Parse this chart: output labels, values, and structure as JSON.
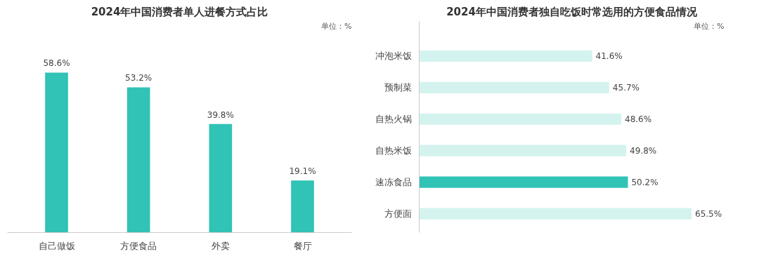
{
  "chart_data": [
    {
      "type": "bar",
      "title": "2024年中国消费者单人进餐方式占比",
      "categories": [
        "自己做饭",
        "方便食品",
        "外卖",
        "餐厅"
      ],
      "values": [
        58.6,
        53.2,
        39.8,
        19.1
      ],
      "color": "#31c3b5",
      "value_labels": [
        "58.6%",
        "53.2%",
        "39.8%",
        "19.1%"
      ],
      "annotations": [
        "单位：%"
      ],
      "grid": false
    },
    {
      "type": "bar",
      "orientation": "horizontal",
      "title": "2024年中国消费者独自吃饭时常选用的方便食品情况",
      "categories": [
        "冲泡米饭",
        "预制菜",
        "自热火锅",
        "自热米饭",
        "速冻食品",
        "方便面"
      ],
      "values": [
        41.6,
        45.7,
        48.6,
        49.8,
        50.2,
        65.5
      ],
      "colors": [
        "#d4f3ef",
        "#d4f3ef",
        "#d4f3ef",
        "#d4f3ef",
        "#31c3b5",
        "#d4f3ef"
      ],
      "value_labels": [
        "41.6%",
        "45.7%",
        "48.6%",
        "49.8%",
        "50.2%",
        "65.5%"
      ],
      "annotations": [
        "单位：%"
      ],
      "grid": false
    }
  ]
}
